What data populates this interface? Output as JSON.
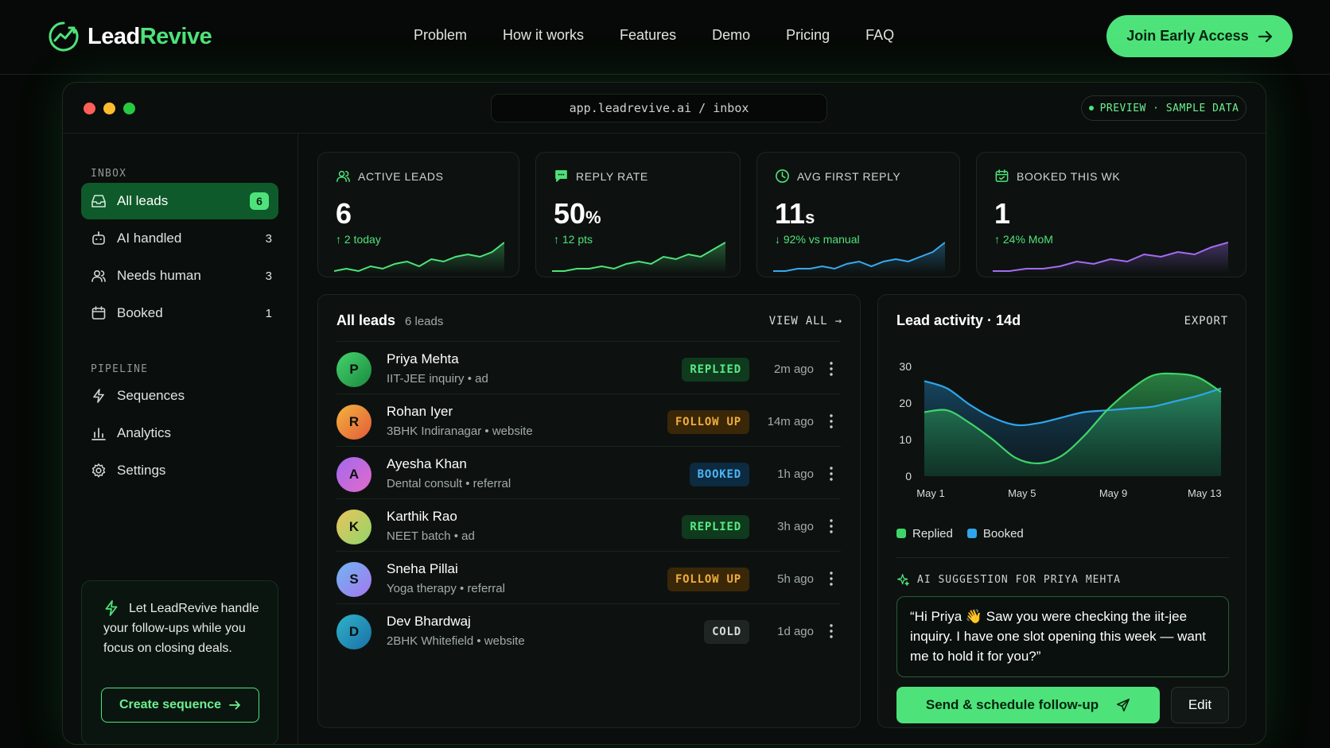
{
  "brand": {
    "name_a": "Lead",
    "name_b": "Revive",
    "accent": "#4ee37a"
  },
  "nav": {
    "links": [
      "Problem",
      "How it works",
      "Features",
      "Demo",
      "Pricing",
      "FAQ"
    ],
    "cta_label": "Join Early Access"
  },
  "window": {
    "url": "app.leadrevive.ai / inbox",
    "preview_label": "PREVIEW · SAMPLE DATA"
  },
  "sidebar": {
    "inbox_label": "INBOX",
    "inbox_items": [
      {
        "label": "All leads",
        "count": "6",
        "icon": "inbox-icon"
      },
      {
        "label": "AI handled",
        "count": "3",
        "icon": "robot-icon"
      },
      {
        "label": "Needs human",
        "count": "3",
        "icon": "users-icon"
      },
      {
        "label": "Booked",
        "count": "1",
        "icon": "calendar-icon"
      }
    ],
    "pipeline_label": "PIPELINE",
    "pipeline_items": [
      {
        "label": "Sequences",
        "icon": "bolt-icon"
      },
      {
        "label": "Analytics",
        "icon": "bar-chart-icon"
      },
      {
        "label": "Settings",
        "icon": "gear-icon"
      }
    ],
    "promo": {
      "text": "Let LeadRevive handle your follow-ups while you focus on closing deals.",
      "button": "Create sequence"
    }
  },
  "stats": [
    {
      "label": "ACTIVE LEADS",
      "value": "6",
      "unit": "",
      "delta": "↑ 2 today",
      "icon": "users-icon",
      "color": "#4ee37a",
      "trend": [
        2,
        3,
        2,
        4,
        3,
        5,
        6,
        4,
        7,
        6,
        8,
        9,
        8,
        10,
        14
      ]
    },
    {
      "label": "REPLY RATE",
      "value": "50",
      "unit": "%",
      "delta": "↑ 12 pts",
      "icon": "chat-icon",
      "color": "#4ee37a",
      "trend": [
        2,
        2,
        3,
        3,
        4,
        3,
        5,
        6,
        5,
        8,
        7,
        9,
        8,
        11,
        14
      ]
    },
    {
      "label": "AVG FIRST REPLY",
      "value": "11",
      "unit": "s",
      "delta": "↓ 92% vs manual",
      "icon": "clock-icon",
      "color": "#38a9f0",
      "trend": [
        2,
        2,
        3,
        3,
        4,
        3,
        5,
        6,
        4,
        6,
        7,
        6,
        8,
        10,
        14
      ]
    },
    {
      "label": "BOOKED THIS WK",
      "value": "1",
      "unit": "",
      "delta": "↑ 24% MoM",
      "icon": "calendar-icon",
      "color": "#a46cf2",
      "trend": [
        2,
        2,
        3,
        3,
        4,
        6,
        5,
        7,
        6,
        9,
        8,
        10,
        9,
        12,
        14
      ]
    }
  ],
  "leads": {
    "title": "All leads",
    "count_label": "6 leads",
    "view_all": "VIEW ALL →",
    "rows": [
      {
        "initial": "P",
        "name": "Priya Mehta",
        "sub": "IIT-JEE inquiry • ad",
        "status": "REPLIED",
        "kind": "replied",
        "time": "2m ago",
        "g1": "#46d36e",
        "g2": "#1a8a3c"
      },
      {
        "initial": "R",
        "name": "Rohan Iyer",
        "sub": "3BHK Indiranagar • website",
        "status": "FOLLOW UP",
        "kind": "follow",
        "time": "14m ago",
        "g1": "#f2b43c",
        "g2": "#e45a3a"
      },
      {
        "initial": "A",
        "name": "Ayesha Khan",
        "sub": "Dental consult • referral",
        "status": "BOOKED",
        "kind": "booked",
        "time": "1h ago",
        "g1": "#a06af0",
        "g2": "#e46ac8"
      },
      {
        "initial": "K",
        "name": "Karthik Rao",
        "sub": "NEET batch • ad",
        "status": "REPLIED",
        "kind": "replied",
        "time": "3h ago",
        "g1": "#ecc35c",
        "g2": "#8fd66a"
      },
      {
        "initial": "S",
        "name": "Sneha Pillai",
        "sub": "Yoga therapy • referral",
        "status": "FOLLOW UP",
        "kind": "follow",
        "time": "5h ago",
        "g1": "#6fb6f2",
        "g2": "#a576ee"
      },
      {
        "initial": "D",
        "name": "Dev Bhardwaj",
        "sub": "2BHK Whitefield • website",
        "status": "COLD",
        "kind": "cold",
        "time": "1d ago",
        "g1": "#2fb3c8",
        "g2": "#1a6fa8"
      }
    ]
  },
  "activity": {
    "title": "Lead activity · 14d",
    "export": "EXPORT",
    "ai_label": "AI SUGGESTION FOR PRIYA MEHTA",
    "ai_text": "“Hi Priya 👋 Saw you were checking the iit-jee inquiry. I have one slot opening this week — want me to hold it for you?”",
    "send_label": "Send & schedule follow-up",
    "edit_label": "Edit"
  },
  "chart_data": {
    "type": "area",
    "x": [
      "May 1",
      "May 2",
      "May 3",
      "May 4",
      "May 5",
      "May 6",
      "May 7",
      "May 8",
      "May 9",
      "May 10",
      "May 11",
      "May 12",
      "May 13",
      "May 14"
    ],
    "xticks": [
      "May 1",
      "May 5",
      "May 9",
      "May 13"
    ],
    "yticks": [
      0,
      10,
      20,
      30
    ],
    "ylim": [
      0,
      30
    ],
    "series": [
      {
        "name": "Replied",
        "color": "#3fd46a",
        "values": [
          17.5,
          18,
          14.5,
          10,
          5,
          3.5,
          5.5,
          11,
          18,
          23.5,
          27.5,
          28,
          27,
          23
        ]
      },
      {
        "name": "Booked",
        "color": "#2ea7ea",
        "values": [
          26,
          24,
          19.5,
          16,
          14,
          14.5,
          16,
          17.5,
          18,
          18.5,
          19,
          20.5,
          22,
          24
        ]
      }
    ],
    "legend": "bottom-left",
    "grid": false
  }
}
